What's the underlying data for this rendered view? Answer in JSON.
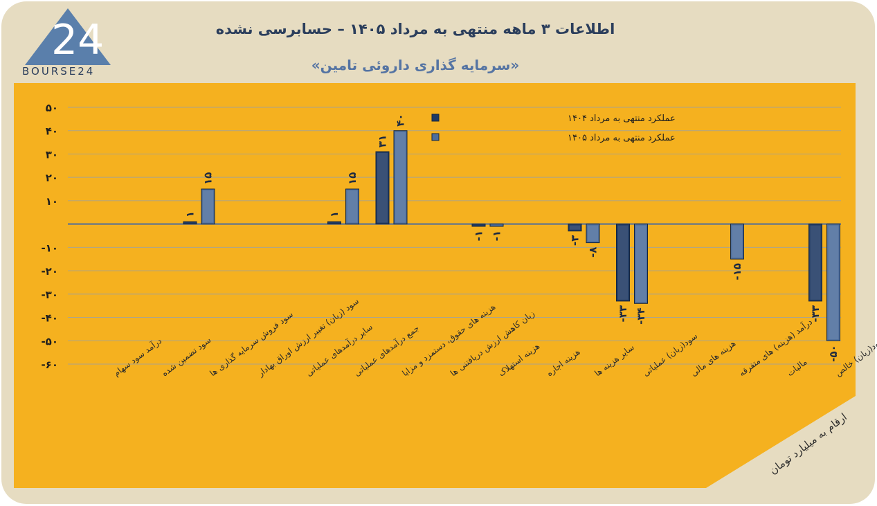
{
  "header": {
    "title": "اطلاعات ۳ ماهه منتهی به مرداد ۱۴۰۵ – حسابرسی نشده",
    "subtitle": "«سرمایه گذاری داروئی تامین»",
    "logo_number": "24",
    "logo_text": "BOURSE24"
  },
  "footer": {
    "units_note": "ارقام به میلیارد تومان"
  },
  "colors": {
    "background": "#e6dcc1",
    "panel": "#f5b11f",
    "series_1": "#1f3a63",
    "series_2": "#4d6e9c",
    "title": "#2b3e5c"
  },
  "chart_data": {
    "type": "bar",
    "categories": [
      "درآمد سود سهام",
      "سود تضمین شده",
      "سود فروش سرمایه گذاری ها",
      "سود (زیان) تغییر ارزش اوراق بهادار",
      "سایر درآمدهای عملیاتی",
      "جمع درآمدهای عملیاتی",
      "هزینه های حقوق، دستمزد و مزایا",
      "زیان کاهش ارزش دریافتنی ها",
      "هزینه استهلاک",
      "هزینه اجاره",
      "سایر هزینه ها",
      "سود(زیان) عملیاتی",
      "هزینه های مالی",
      "درآمد (هزینه) های متفرقه",
      "مالیات",
      "سود(زیان) خالص"
    ],
    "series": [
      {
        "name": "عملکرد منتهی به مرداد ۱۴۰۴",
        "values": [
          null,
          null,
          1,
          null,
          null,
          1,
          31,
          null,
          -1,
          null,
          -3,
          -33,
          null,
          null,
          null,
          -33
        ],
        "labels": [
          "",
          "",
          "۱",
          "",
          "",
          "۱",
          "۳۱",
          "",
          "-۱",
          "",
          "-۳",
          "-۳۳",
          "",
          "",
          "",
          "-۳۳"
        ]
      },
      {
        "name": "عملکرد منتهی به مرداد ۱۴۰۵",
        "values": [
          null,
          null,
          15,
          null,
          null,
          15,
          40,
          null,
          -1,
          null,
          -8,
          -34,
          null,
          -15,
          null,
          -50
        ],
        "labels": [
          "",
          "",
          "۱۵",
          "",
          "",
          "۱۵",
          "۴۰",
          "",
          "-۱",
          "",
          "-۸",
          "-۳۴",
          "",
          "-۱۵",
          "",
          "-۵۰"
        ]
      }
    ],
    "yticks": [
      "۵۰",
      "۴۰",
      "۳۰",
      "۲۰",
      "۱۰",
      "",
      "-۱۰",
      "-۲۰",
      "-۳۰",
      "-۴۰",
      "-۵۰",
      "-۶۰"
    ],
    "ytick_values": [
      50,
      40,
      30,
      20,
      10,
      0,
      -10,
      -20,
      -30,
      -40,
      -50,
      -60
    ],
    "ylim": [
      -60,
      50
    ],
    "grid": true,
    "legend_position": "top-right"
  }
}
